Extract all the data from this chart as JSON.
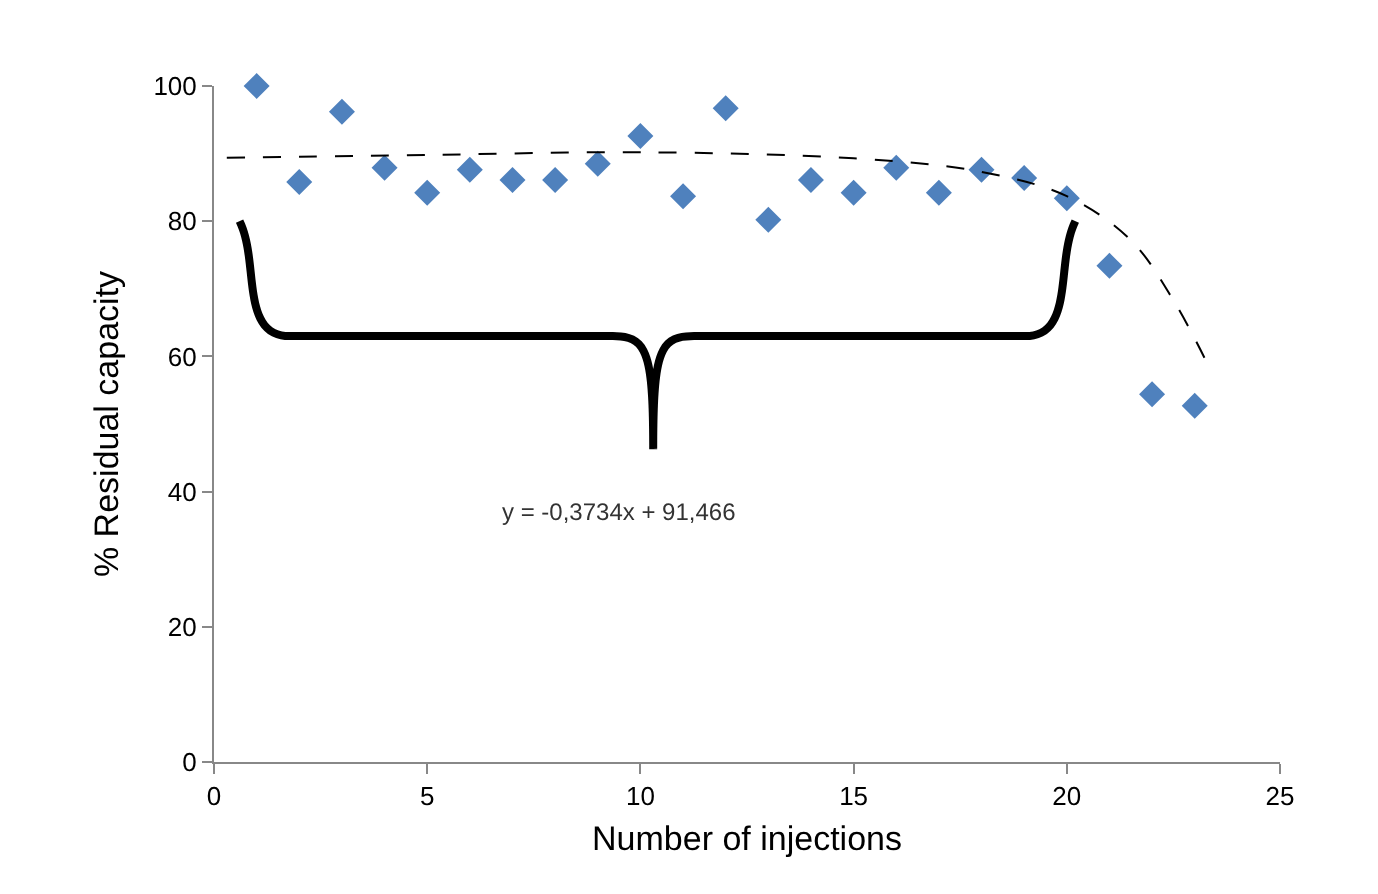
{
  "chart_data": {
    "type": "scatter",
    "xlabel": "Number of injections",
    "ylabel": "% Residual capacity",
    "xlim": [
      0,
      25
    ],
    "xticks": [
      0,
      5,
      10,
      15,
      20,
      25
    ],
    "ylim": [
      0,
      100
    ],
    "yticks": [
      0,
      20,
      40,
      60,
      80,
      100
    ],
    "grid": false,
    "marker": "diamond",
    "annotations": [
      "y = -0,3734x + 91,466"
    ],
    "series": [
      {
        "color": "#4f81bd",
        "x": [
          1,
          2,
          3,
          4,
          5,
          6,
          7,
          8,
          9,
          10,
          11,
          12,
          13,
          14,
          15,
          16,
          17,
          18,
          19,
          20,
          21,
          22,
          23
        ],
        "values": [
          100,
          85.8,
          96.2,
          87.9,
          84.2,
          87.6,
          86.1,
          86.1,
          88.5,
          92.6,
          83.7,
          96.7,
          80.2,
          86.1,
          84.2,
          87.9,
          84.2,
          87.6,
          86.4,
          83.4,
          73.4,
          54.4,
          52.7
        ]
      },
      {
        "type": "line",
        "color": "#000000",
        "marker": "none",
        "line_style": "dashed",
        "x": [
          0.3,
          5,
          10,
          15,
          18,
          20,
          21.5,
          22.5,
          23.3
        ],
        "values": [
          89.4,
          89.8,
          90.2,
          89.3,
          87.3,
          83.7,
          77.2,
          68.3,
          58.9
        ]
      }
    ]
  }
}
